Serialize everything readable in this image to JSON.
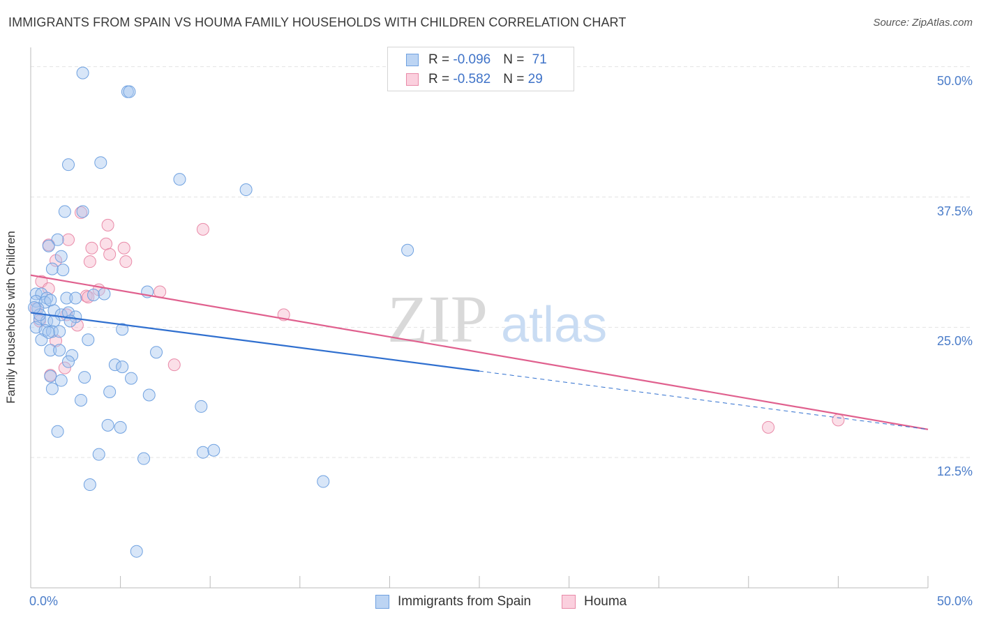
{
  "title": "IMMIGRANTS FROM SPAIN VS HOUMA FAMILY HOUSEHOLDS WITH CHILDREN CORRELATION CHART",
  "source": "Source: ZipAtlas.com",
  "watermark": {
    "zip": "ZIP",
    "atlas": "atlas"
  },
  "legend": {
    "rows": [
      {
        "r_label": "R = ",
        "r_value": "-0.096",
        "n_label": "N = ",
        "n_value": "71"
      },
      {
        "r_label": "R = ",
        "r_value": "-0.582",
        "n_label": "N = ",
        "n_value": "29"
      }
    ]
  },
  "bottom_legend": {
    "series1": "Immigrants from Spain",
    "series2": "Houma"
  },
  "colors": {
    "blue_fill": "#a9c8ef",
    "blue_stroke": "#6fa1e0",
    "blue_line": "#2f6fcf",
    "pink_fill": "#f6b9cc",
    "pink_stroke": "#e98aa8",
    "pink_line": "#e0608e",
    "grid": "#e3e3e3",
    "axis_label": "#4a7cc9"
  },
  "chart_data": {
    "type": "scatter",
    "title": "IMMIGRANTS FROM SPAIN VS HOUMA FAMILY HOUSEHOLDS WITH CHILDREN CORRELATION CHART",
    "xlabel": "",
    "ylabel": "Family Households with Children",
    "xlim": [
      0,
      50
    ],
    "ylim": [
      0,
      51.25
    ],
    "x_tick_labels": [
      "0.0%",
      "50.0%"
    ],
    "y_ticks": [
      12.5,
      25.0,
      37.5,
      50.0
    ],
    "y_tick_labels": [
      "12.5%",
      "25.0%",
      "37.5%",
      "50.0%"
    ],
    "series": [
      {
        "name": "Immigrants from Spain",
        "r": -0.096,
        "n": 71,
        "points": [
          [
            2.9,
            49.4
          ],
          [
            5.4,
            47.6
          ],
          [
            5.5,
            47.6
          ],
          [
            2.1,
            40.6
          ],
          [
            3.9,
            40.8
          ],
          [
            8.3,
            39.2
          ],
          [
            12.0,
            38.2
          ],
          [
            1.9,
            36.1
          ],
          [
            2.9,
            36.1
          ],
          [
            1.5,
            33.4
          ],
          [
            1.0,
            32.8
          ],
          [
            21.0,
            32.4
          ],
          [
            1.7,
            31.8
          ],
          [
            1.2,
            30.6
          ],
          [
            1.8,
            30.5
          ],
          [
            0.3,
            28.2
          ],
          [
            0.6,
            28.2
          ],
          [
            0.9,
            27.8
          ],
          [
            2.0,
            27.8
          ],
          [
            2.5,
            27.8
          ],
          [
            3.5,
            28.1
          ],
          [
            4.1,
            28.2
          ],
          [
            6.5,
            28.4
          ],
          [
            0.3,
            27.5
          ],
          [
            0.8,
            27.4
          ],
          [
            1.1,
            27.6
          ],
          [
            0.4,
            26.8
          ],
          [
            1.3,
            26.6
          ],
          [
            1.7,
            26.2
          ],
          [
            2.1,
            26.4
          ],
          [
            2.5,
            26.0
          ],
          [
            0.5,
            25.8
          ],
          [
            0.9,
            25.6
          ],
          [
            1.3,
            25.6
          ],
          [
            0.3,
            25.0
          ],
          [
            0.8,
            24.7
          ],
          [
            1.2,
            24.6
          ],
          [
            1.6,
            24.6
          ],
          [
            5.1,
            24.8
          ],
          [
            0.6,
            23.8
          ],
          [
            3.2,
            23.8
          ],
          [
            1.1,
            22.8
          ],
          [
            1.6,
            22.8
          ],
          [
            2.3,
            22.3
          ],
          [
            7.0,
            22.6
          ],
          [
            2.1,
            21.7
          ],
          [
            4.7,
            21.4
          ],
          [
            5.1,
            21.2
          ],
          [
            1.1,
            20.3
          ],
          [
            1.7,
            19.9
          ],
          [
            3.0,
            20.2
          ],
          [
            5.6,
            20.1
          ],
          [
            1.2,
            19.1
          ],
          [
            4.4,
            18.8
          ],
          [
            6.6,
            18.5
          ],
          [
            2.8,
            18.0
          ],
          [
            9.5,
            17.4
          ],
          [
            4.3,
            15.6
          ],
          [
            5.0,
            15.4
          ],
          [
            1.5,
            15.0
          ],
          [
            3.8,
            12.8
          ],
          [
            6.3,
            12.4
          ],
          [
            9.6,
            13.0
          ],
          [
            10.2,
            13.2
          ],
          [
            16.3,
            10.2
          ],
          [
            3.3,
            9.9
          ],
          [
            5.9,
            3.5
          ],
          [
            0.5,
            26.2
          ],
          [
            0.2,
            26.9
          ],
          [
            2.2,
            25.6
          ],
          [
            1.0,
            24.5
          ]
        ],
        "trend": {
          "x": [
            0,
            25
          ],
          "y": [
            26.4,
            20.8
          ]
        },
        "trend_extension": {
          "x": [
            25,
            50
          ],
          "y": [
            20.8,
            15.2
          ]
        }
      },
      {
        "name": "Houma",
        "r": -0.582,
        "n": 29,
        "points": [
          [
            2.8,
            36.0
          ],
          [
            4.3,
            34.8
          ],
          [
            9.6,
            34.4
          ],
          [
            2.1,
            33.4
          ],
          [
            4.2,
            33.0
          ],
          [
            3.4,
            32.6
          ],
          [
            5.2,
            32.6
          ],
          [
            1.0,
            32.9
          ],
          [
            4.4,
            32.0
          ],
          [
            1.4,
            31.4
          ],
          [
            3.3,
            31.3
          ],
          [
            5.3,
            31.3
          ],
          [
            0.6,
            29.4
          ],
          [
            1.0,
            28.7
          ],
          [
            3.8,
            28.6
          ],
          [
            7.2,
            28.4
          ],
          [
            3.1,
            28.0
          ],
          [
            3.2,
            27.9
          ],
          [
            0.3,
            26.8
          ],
          [
            2.0,
            26.2
          ],
          [
            14.1,
            26.2
          ],
          [
            0.5,
            25.6
          ],
          [
            2.6,
            25.2
          ],
          [
            1.4,
            23.7
          ],
          [
            8.0,
            21.4
          ],
          [
            1.9,
            21.1
          ],
          [
            1.1,
            20.4
          ],
          [
            41.1,
            15.4
          ],
          [
            45.0,
            16.1
          ]
        ],
        "trend": {
          "x": [
            0,
            50
          ],
          "y": [
            30.0,
            15.2
          ]
        }
      }
    ]
  }
}
